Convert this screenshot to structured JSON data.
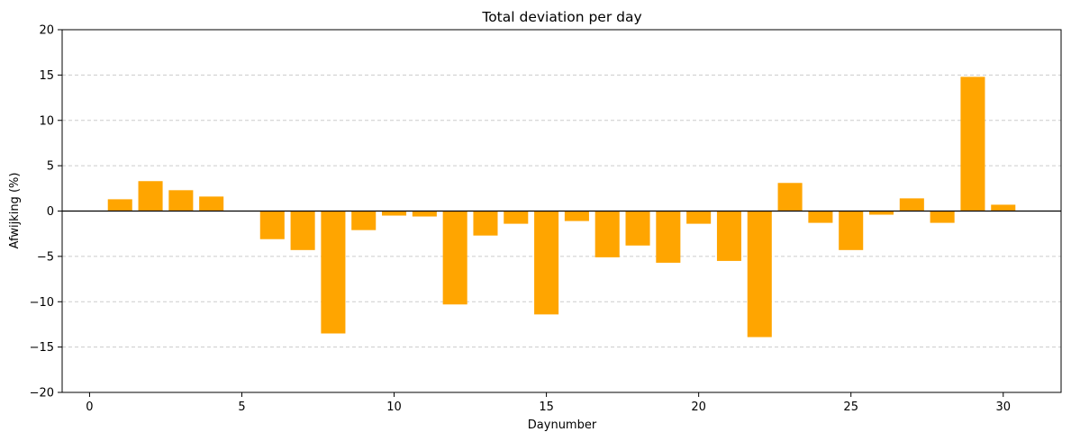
{
  "chart_data": {
    "type": "bar",
    "title": "Total deviation per day",
    "xlabel": "Daynumber",
    "ylabel": "Afwijking (%)",
    "xlim": [
      -0.9,
      31.9
    ],
    "ylim": [
      -20,
      20
    ],
    "xticks": [
      0,
      5,
      10,
      15,
      20,
      25,
      30
    ],
    "xtick_labels": [
      "0",
      "5",
      "10",
      "15",
      "20",
      "25",
      "30"
    ],
    "yticks": [
      -20,
      -15,
      -10,
      -5,
      0,
      5,
      10,
      15,
      20
    ],
    "ytick_labels": [
      "−20",
      "−15",
      "−10",
      "−5",
      "0",
      "5",
      "10",
      "15",
      "20"
    ],
    "grid": "y-dashed",
    "bar_color": "#ffa500",
    "zero_line": true,
    "x": [
      1,
      2,
      3,
      4,
      6,
      7,
      8,
      9,
      10,
      11,
      12,
      13,
      14,
      15,
      16,
      17,
      18,
      19,
      20,
      21,
      22,
      23,
      24,
      25,
      26,
      27,
      28,
      29,
      30
    ],
    "values": [
      1.3,
      3.3,
      2.3,
      1.6,
      -3.1,
      -4.3,
      -13.5,
      -2.1,
      -0.5,
      -0.6,
      -10.3,
      -2.7,
      -1.4,
      -11.4,
      -1.1,
      -5.1,
      -3.8,
      -5.7,
      -1.4,
      -5.5,
      -13.9,
      3.1,
      -1.3,
      -4.3,
      -0.4,
      1.4,
      -1.3,
      14.8,
      0.7
    ]
  }
}
